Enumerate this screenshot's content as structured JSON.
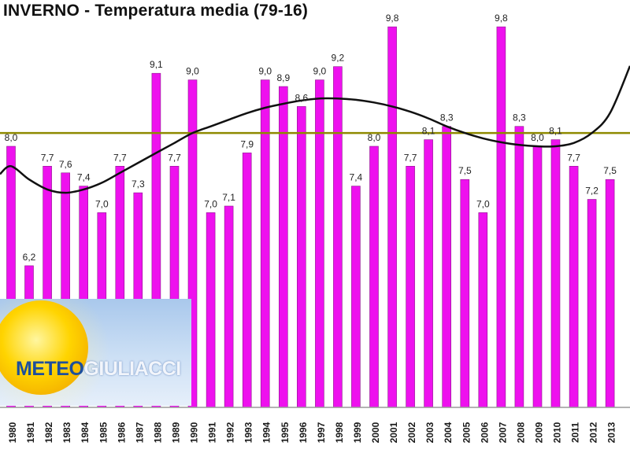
{
  "chart_data": {
    "type": "bar",
    "title": "INVERNO - Temperatura media (79-16)",
    "categories": [
      "1980",
      "1981",
      "1982",
      "1983",
      "1984",
      "1985",
      "1986",
      "1987",
      "1988",
      "1989",
      "1990",
      "1991",
      "1992",
      "1993",
      "1994",
      "1995",
      "1996",
      "1997",
      "1998",
      "1999",
      "2000",
      "2001",
      "2002",
      "2003",
      "2004",
      "2005",
      "2006",
      "2007",
      "2008",
      "2009",
      "2010",
      "2011",
      "2012",
      "2013"
    ],
    "value_labels": [
      "8,0",
      "6,2",
      "7,7",
      "7,6",
      "7,4",
      "7,0",
      "7,7",
      "7,3",
      "9,1",
      "7,7",
      "9,0",
      "7,0",
      "7,1",
      "7,9",
      "9,0",
      "8,9",
      "8,6",
      "9,0",
      "9,2",
      "7,4",
      "8,0",
      "9,8",
      "7,7",
      "8,1",
      "8,3",
      "7,5",
      "7,0",
      "9,8",
      "8,3",
      "8,0",
      "8,1",
      "7,7",
      "7,2",
      "7,5"
    ],
    "values": [
      8.0,
      6.2,
      7.7,
      7.6,
      7.4,
      7.0,
      7.7,
      7.3,
      9.1,
      7.7,
      9.0,
      7.0,
      7.1,
      7.9,
      9.0,
      8.9,
      8.6,
      9.0,
      9.2,
      7.4,
      8.0,
      9.8,
      7.7,
      8.1,
      8.3,
      7.5,
      7.0,
      9.8,
      8.3,
      8.0,
      8.1,
      7.7,
      7.2,
      7.5
    ],
    "mean_line": 8.2,
    "trend_curve": [
      7.7,
      7.5,
      7.35,
      7.3,
      7.35,
      7.45,
      7.6,
      7.75,
      7.9,
      8.05,
      8.2,
      8.3,
      8.4,
      8.5,
      8.58,
      8.64,
      8.69,
      8.72,
      8.72,
      8.7,
      8.66,
      8.6,
      8.52,
      8.42,
      8.3,
      8.2,
      8.12,
      8.06,
      8.02,
      8.0,
      8.0,
      8.05,
      8.2,
      8.5
    ],
    "bar_color": "#ee11ee",
    "mean_line_color": "#8f8a00",
    "trend_color": "#111111",
    "grid": false,
    "xlabel": "",
    "ylabel": ""
  },
  "logo": {
    "word1": "METEO",
    "word2": "GIULIACCI"
  }
}
